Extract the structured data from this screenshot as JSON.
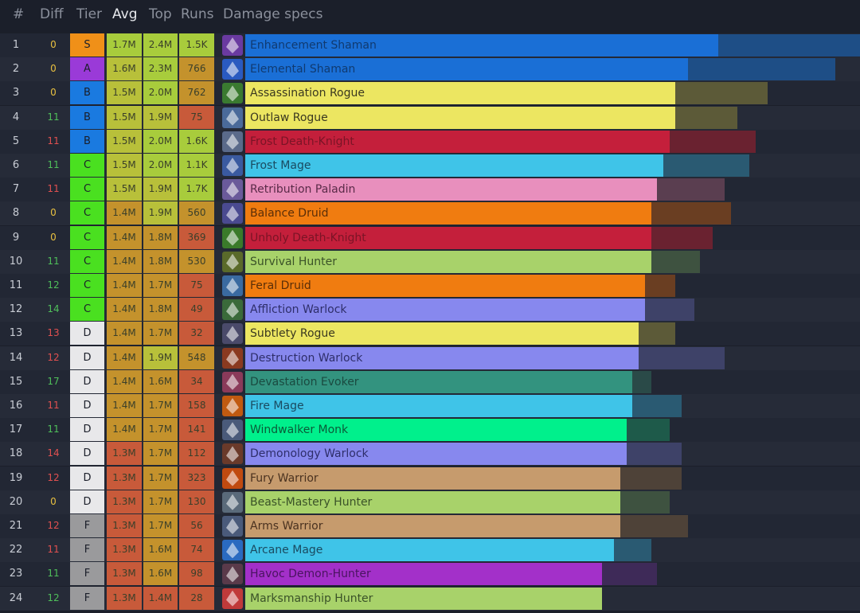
{
  "header": {
    "rank": "#",
    "diff": "Diff",
    "tier": "Tier",
    "avg": "Avg",
    "top": "Top",
    "runs": "Runs",
    "specs": "Damage specs"
  },
  "colors": {
    "diff_positive": "#4fbf5a",
    "diff_negative": "#e05050",
    "diff_zero": "#e8c040",
    "tier": {
      "S": "#f09018",
      "A": "#9a3ad8",
      "B": "#1a7ae0",
      "C": "#4ae020",
      "D": "#e8e8ea",
      "F": "#9a9a9c"
    },
    "avg": "#d0b43a",
    "top_high": "#a8cc3c",
    "runs_high": "#a8cc3c",
    "runs_mid": "#c4922c",
    "runs_low": "#c85a3a"
  },
  "rows": [
    {
      "rank": "1",
      "diff": "0",
      "diffc": "zero",
      "tier": "S",
      "avg": "1.7M",
      "top": "2.4M",
      "runs": "1.5K",
      "spec": "Enhancement Shaman",
      "bar": 0.77,
      "top_pct": 1.0,
      "color": "#1a6fd6",
      "bgcolor": "#1e4e86",
      "textc": "#103a70",
      "icon": "enhancement-shaman-icon",
      "iconc": "#6a3aa0",
      "topc": "#a8cc3c",
      "runsc": "#a8cc3c",
      "avgc": "#a8cc3c"
    },
    {
      "rank": "2",
      "diff": "0",
      "diffc": "zero",
      "tier": "A",
      "avg": "1.6M",
      "top": "2.3M",
      "runs": "766",
      "spec": "Elemental Shaman",
      "bar": 0.72,
      "top_pct": 0.96,
      "color": "#1a6fd6",
      "bgcolor": "#1e4e86",
      "textc": "#103a70",
      "icon": "elemental-shaman-icon",
      "iconc": "#2a5ac0",
      "topc": "#a8cc3c",
      "runsc": "#c4922c",
      "avgc": "#b8c03a"
    },
    {
      "rank": "3",
      "diff": "0",
      "diffc": "zero",
      "tier": "B",
      "avg": "1.5M",
      "top": "2.0M",
      "runs": "762",
      "spec": "Assassination Rogue",
      "bar": 0.7,
      "top_pct": 0.85,
      "color": "#ece661",
      "bgcolor": "#5c5a38",
      "textc": "#3a3820",
      "icon": "assassination-rogue-icon",
      "iconc": "#3a7a30",
      "topc": "#a8cc3c",
      "runsc": "#c4922c",
      "avgc": "#b8c03a"
    },
    {
      "rank": "4",
      "diff": "11",
      "diffc": "pos",
      "tier": "B",
      "avg": "1.5M",
      "top": "1.9M",
      "runs": "75",
      "spec": "Outlaw Rogue",
      "bar": 0.7,
      "top_pct": 0.8,
      "color": "#ece661",
      "bgcolor": "#5c5a38",
      "textc": "#3a3820",
      "icon": "outlaw-rogue-icon",
      "iconc": "#4a6a9a",
      "topc": "#b8c03a",
      "runsc": "#c85a3a",
      "avgc": "#b8c03a"
    },
    {
      "rank": "5",
      "diff": "11",
      "diffc": "neg",
      "tier": "B",
      "avg": "1.5M",
      "top": "2.0M",
      "runs": "1.6K",
      "spec": "Frost Death-Knight",
      "bar": 0.69,
      "top_pct": 0.83,
      "color": "#c41f3b",
      "bgcolor": "#6a2230",
      "textc": "#7a1426",
      "icon": "frost-death-knight-icon",
      "iconc": "#5a6a8a",
      "topc": "#a8cc3c",
      "runsc": "#a8cc3c",
      "avgc": "#b8c03a"
    },
    {
      "rank": "6",
      "diff": "11",
      "diffc": "pos",
      "tier": "C",
      "avg": "1.5M",
      "top": "2.0M",
      "runs": "1.1K",
      "spec": "Frost Mage",
      "bar": 0.68,
      "top_pct": 0.82,
      "color": "#3fc4e8",
      "bgcolor": "#2a5a72",
      "textc": "#1a4a60",
      "icon": "frost-mage-icon",
      "iconc": "#3a5aa0",
      "topc": "#a8cc3c",
      "runsc": "#a8cc3c",
      "avgc": "#b8c03a"
    },
    {
      "rank": "7",
      "diff": "11",
      "diffc": "neg",
      "tier": "C",
      "avg": "1.5M",
      "top": "1.9M",
      "runs": "1.7K",
      "spec": "Retribution Paladin",
      "bar": 0.67,
      "top_pct": 0.78,
      "color": "#e88fbd",
      "bgcolor": "#5a3e50",
      "textc": "#5a2a48",
      "icon": "retribution-paladin-icon",
      "iconc": "#6a5a9a",
      "topc": "#b8c03a",
      "runsc": "#a8cc3c",
      "avgc": "#b8c03a"
    },
    {
      "rank": "8",
      "diff": "0",
      "diffc": "zero",
      "tier": "C",
      "avg": "1.4M",
      "top": "1.9M",
      "runs": "560",
      "spec": "Balance Druid",
      "bar": 0.66,
      "top_pct": 0.79,
      "color": "#f07c10",
      "bgcolor": "#6a3e22",
      "textc": "#5a2e08",
      "icon": "balance-druid-icon",
      "iconc": "#4a4a90",
      "topc": "#b8c03a",
      "runsc": "#c4922c",
      "avgc": "#c4922c"
    },
    {
      "rank": "9",
      "diff": "0",
      "diffc": "zero",
      "tier": "C",
      "avg": "1.4M",
      "top": "1.8M",
      "runs": "369",
      "spec": "Unholy Death-Knight",
      "bar": 0.66,
      "top_pct": 0.76,
      "color": "#c41f3b",
      "bgcolor": "#6a2230",
      "textc": "#7a1426",
      "icon": "unholy-death-knight-icon",
      "iconc": "#3a7a2a",
      "topc": "#c4922c",
      "runsc": "#c85a3a",
      "avgc": "#c4922c"
    },
    {
      "rank": "10",
      "diff": "11",
      "diffc": "pos",
      "tier": "C",
      "avg": "1.4M",
      "top": "1.8M",
      "runs": "530",
      "spec": "Survival Hunter",
      "bar": 0.66,
      "top_pct": 0.74,
      "color": "#a8d26a",
      "bgcolor": "#3e5240",
      "textc": "#3a5228",
      "icon": "survival-hunter-icon",
      "iconc": "#5a6a2a",
      "topc": "#c4922c",
      "runsc": "#c4922c",
      "avgc": "#c4922c"
    },
    {
      "rank": "11",
      "diff": "12",
      "diffc": "pos",
      "tier": "C",
      "avg": "1.4M",
      "top": "1.7M",
      "runs": "75",
      "spec": "Feral Druid",
      "bar": 0.65,
      "top_pct": 0.7,
      "color": "#f07c10",
      "bgcolor": "#6a3e22",
      "textc": "#5a2e08",
      "icon": "feral-druid-icon",
      "iconc": "#3a6aa0",
      "topc": "#c4922c",
      "runsc": "#c85a3a",
      "avgc": "#c4922c"
    },
    {
      "rank": "12",
      "diff": "14",
      "diffc": "pos",
      "tier": "C",
      "avg": "1.4M",
      "top": "1.8M",
      "runs": "49",
      "spec": "Affliction Warlock",
      "bar": 0.65,
      "top_pct": 0.73,
      "color": "#8788ee",
      "bgcolor": "#3e4268",
      "textc": "#2e2e6a",
      "icon": "affliction-warlock-icon",
      "iconc": "#3a6a3a",
      "topc": "#c4922c",
      "runsc": "#c85a3a",
      "avgc": "#c4922c"
    },
    {
      "rank": "13",
      "diff": "13",
      "diffc": "neg",
      "tier": "D",
      "avg": "1.4M",
      "top": "1.7M",
      "runs": "32",
      "spec": "Subtlety Rogue",
      "bar": 0.64,
      "top_pct": 0.7,
      "color": "#ece661",
      "bgcolor": "#5c5a38",
      "textc": "#3a3820",
      "icon": "subtlety-rogue-icon",
      "iconc": "#4a4a6a",
      "topc": "#c4922c",
      "runsc": "#c85a3a",
      "avgc": "#c4922c"
    },
    {
      "rank": "14",
      "diff": "12",
      "diffc": "neg",
      "tier": "D",
      "avg": "1.4M",
      "top": "1.9M",
      "runs": "548",
      "spec": "Destruction Warlock",
      "bar": 0.64,
      "top_pct": 0.78,
      "color": "#8788ee",
      "bgcolor": "#3e4268",
      "textc": "#2e2e6a",
      "icon": "destruction-warlock-icon",
      "iconc": "#8a3a20",
      "topc": "#b8c03a",
      "runsc": "#c4922c",
      "avgc": "#c4922c"
    },
    {
      "rank": "15",
      "diff": "17",
      "diffc": "pos",
      "tier": "D",
      "avg": "1.4M",
      "top": "1.6M",
      "runs": "34",
      "spec": "Devastation Evoker",
      "bar": 0.63,
      "top_pct": 0.66,
      "color": "#33937f",
      "bgcolor": "#2a4a48",
      "textc": "#1a4a40",
      "icon": "devastation-evoker-icon",
      "iconc": "#8a3a5a",
      "topc": "#c4922c",
      "runsc": "#c85a3a",
      "avgc": "#c4922c"
    },
    {
      "rank": "16",
      "diff": "11",
      "diffc": "neg",
      "tier": "D",
      "avg": "1.4M",
      "top": "1.7M",
      "runs": "158",
      "spec": "Fire Mage",
      "bar": 0.63,
      "top_pct": 0.71,
      "color": "#3fc4e8",
      "bgcolor": "#2a5a72",
      "textc": "#1a4a60",
      "icon": "fire-mage-icon",
      "iconc": "#c05a10",
      "topc": "#c4922c",
      "runsc": "#c85a3a",
      "avgc": "#c4922c"
    },
    {
      "rank": "17",
      "diff": "11",
      "diffc": "pos",
      "tier": "D",
      "avg": "1.4M",
      "top": "1.7M",
      "runs": "141",
      "spec": "Windwalker Monk",
      "bar": 0.62,
      "top_pct": 0.69,
      "color": "#00f08c",
      "bgcolor": "#1e5a4a",
      "textc": "#0a5a38",
      "icon": "windwalker-monk-icon",
      "iconc": "#4a5a7a",
      "topc": "#c4922c",
      "runsc": "#c85a3a",
      "avgc": "#c4922c"
    },
    {
      "rank": "18",
      "diff": "14",
      "diffc": "neg",
      "tier": "D",
      "avg": "1.3M",
      "top": "1.7M",
      "runs": "112",
      "spec": "Demonology Warlock",
      "bar": 0.62,
      "top_pct": 0.71,
      "color": "#8788ee",
      "bgcolor": "#3e4268",
      "textc": "#2e2e6a",
      "icon": "demonology-warlock-icon",
      "iconc": "#6a3a2a",
      "topc": "#c4922c",
      "runsc": "#c85a3a",
      "avgc": "#c85a3a"
    },
    {
      "rank": "19",
      "diff": "12",
      "diffc": "neg",
      "tier": "D",
      "avg": "1.3M",
      "top": "1.7M",
      "runs": "323",
      "spec": "Fury Warrior",
      "bar": 0.61,
      "top_pct": 0.71,
      "color": "#c69b6d",
      "bgcolor": "#4e4238",
      "textc": "#4a3220",
      "icon": "fury-warrior-icon",
      "iconc": "#c04a10",
      "topc": "#c4922c",
      "runsc": "#c85a3a",
      "avgc": "#c85a3a"
    },
    {
      "rank": "20",
      "diff": "0",
      "diffc": "zero",
      "tier": "D",
      "avg": "1.3M",
      "top": "1.7M",
      "runs": "130",
      "spec": "Beast-Mastery Hunter",
      "bar": 0.61,
      "top_pct": 0.69,
      "color": "#a8d26a",
      "bgcolor": "#3e5240",
      "textc": "#3a5228",
      "icon": "beast-mastery-hunter-icon",
      "iconc": "#5a6a7a",
      "topc": "#c4922c",
      "runsc": "#c85a3a",
      "avgc": "#c85a3a"
    },
    {
      "rank": "21",
      "diff": "12",
      "diffc": "neg",
      "tier": "F",
      "avg": "1.3M",
      "top": "1.7M",
      "runs": "56",
      "spec": "Arms Warrior",
      "bar": 0.61,
      "top_pct": 0.72,
      "color": "#c69b6d",
      "bgcolor": "#4e4238",
      "textc": "#4a3220",
      "icon": "arms-warrior-icon",
      "iconc": "#4a5a7a",
      "topc": "#c4922c",
      "runsc": "#c85a3a",
      "avgc": "#c85a3a"
    },
    {
      "rank": "22",
      "diff": "11",
      "diffc": "neg",
      "tier": "F",
      "avg": "1.3M",
      "top": "1.6M",
      "runs": "74",
      "spec": "Arcane Mage",
      "bar": 0.6,
      "top_pct": 0.66,
      "color": "#3fc4e8",
      "bgcolor": "#2a5a72",
      "textc": "#1a4a60",
      "icon": "arcane-mage-icon",
      "iconc": "#2a6ac0",
      "topc": "#c4922c",
      "runsc": "#c85a3a",
      "avgc": "#c85a3a"
    },
    {
      "rank": "23",
      "diff": "11",
      "diffc": "pos",
      "tier": "F",
      "avg": "1.3M",
      "top": "1.6M",
      "runs": "98",
      "spec": "Havoc Demon-Hunter",
      "bar": 0.58,
      "top_pct": 0.67,
      "color": "#a330c9",
      "bgcolor": "#3e2a58",
      "textc": "#4a1460",
      "icon": "havoc-demon-hunter-icon",
      "iconc": "#5a3a4a",
      "topc": "#c4922c",
      "runsc": "#c85a3a",
      "avgc": "#c85a3a"
    },
    {
      "rank": "24",
      "diff": "12",
      "diffc": "pos",
      "tier": "F",
      "avg": "1.3M",
      "top": "1.4M",
      "runs": "28",
      "spec": "Marksmanship Hunter",
      "bar": 0.58,
      "top_pct": 0.58,
      "color": "#a8d26a",
      "bgcolor": "#3e5240",
      "textc": "#3a5228",
      "icon": "marksmanship-hunter-icon",
      "iconc": "#c03a3a",
      "topc": "#c85a3a",
      "runsc": "#c85a3a",
      "avgc": "#c85a3a"
    }
  ]
}
